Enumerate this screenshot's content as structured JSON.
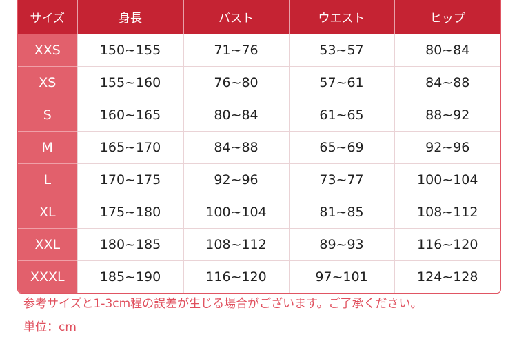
{
  "headers": [
    "サイズ",
    "身長",
    "バスト",
    "ウエスト",
    "ヒップ"
  ],
  "rows": [
    [
      "XXS",
      "150~155",
      "71~76",
      "53~57",
      "80~84"
    ],
    [
      "XS",
      "155~160",
      "76~80",
      "57~61",
      "84~88"
    ],
    [
      "S",
      "160~165",
      "80~84",
      "61~65",
      "88~92"
    ],
    [
      "M",
      "165~170",
      "84~88",
      "65~69",
      "92~96"
    ],
    [
      "L",
      "170~175",
      "92~96",
      "73~77",
      "100~104"
    ],
    [
      "XL",
      "175~180",
      "100~104",
      "81~85",
      "108~112"
    ],
    [
      "XXL",
      "180~185",
      "108~112",
      "89~93",
      "116~120"
    ],
    [
      "XXXL",
      "185~190",
      "116~120",
      "97~101",
      "124~128"
    ]
  ],
  "note": "参考サイズと1-3cm程の誤差が生じる場合がございます。ご了承ください。",
  "unit": "単位：cm",
  "colors": {
    "header": "#c52333",
    "size_column": "#e2606c",
    "note": "#e0505e"
  }
}
